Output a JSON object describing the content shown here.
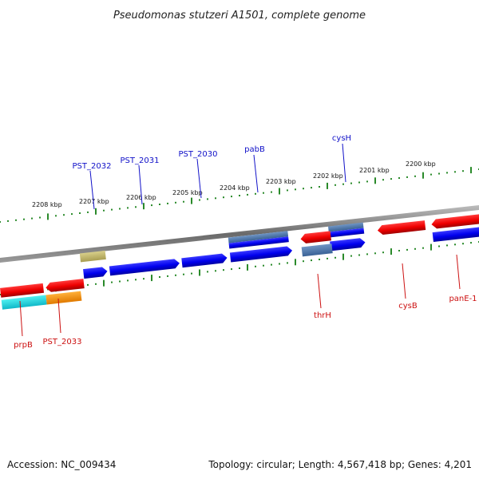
{
  "title": "Pseudomonas stutzeri A1501, complete genome",
  "footer": {
    "accession": "Accession: NC_009434",
    "topology": "Topology: circular; Length: 4,567,418 bp; Genes: 4,201"
  },
  "colors": {
    "forward_label": "#1010c8",
    "reverse_label": "#cc1010",
    "tick": "#2a8a2a",
    "backbone": "#7a7a7a"
  },
  "kbp_labels": [
    "2208 kbp",
    "2207 kbp",
    "2206 kbp",
    "2205 kbp",
    "2204 kbp",
    "2203 kbp",
    "2202 kbp",
    "2201 kbp",
    "2200 kbp"
  ],
  "forward_genes": [
    "PST_2032",
    "PST_2031",
    "PST_2030",
    "pabB",
    "cysH"
  ],
  "reverse_genes": [
    "prpB",
    "PST_2033",
    "thrH",
    "cysB",
    "panE-1"
  ]
}
